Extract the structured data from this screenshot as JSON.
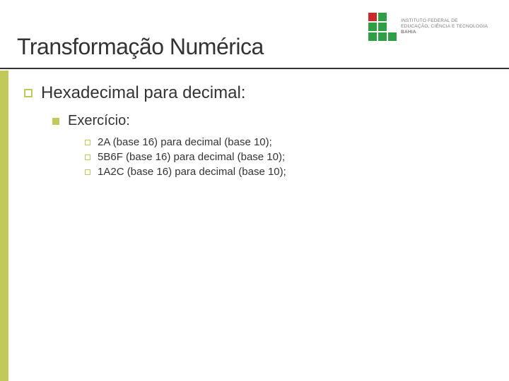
{
  "colors": {
    "accent": "#c0c95a",
    "text": "#333333",
    "rule": "#333333",
    "logo_green": "#2f9e44",
    "logo_red": "#c92a2a",
    "logo_text": "#7a7a7a",
    "background": "#ffffff"
  },
  "logo": {
    "line1": "INSTITUTO FEDERAL DE",
    "line2": "EDUCAÇÃO, CIÊNCIA E TECNOLOGIA",
    "line3": "BAHIA"
  },
  "title": "Transformação Numérica",
  "content": {
    "heading": "Hexadecimal para decimal:",
    "subheading": "Exercício:",
    "items": [
      "2A (base 16) para decimal (base 10);",
      "5B6F (base 16) para decimal (base 10);",
      "1A2C (base 16) para decimal (base 10);"
    ]
  },
  "typography": {
    "title_fontsize": 32,
    "level1_fontsize": 24,
    "level2_fontsize": 20,
    "level3_fontsize": 15
  }
}
